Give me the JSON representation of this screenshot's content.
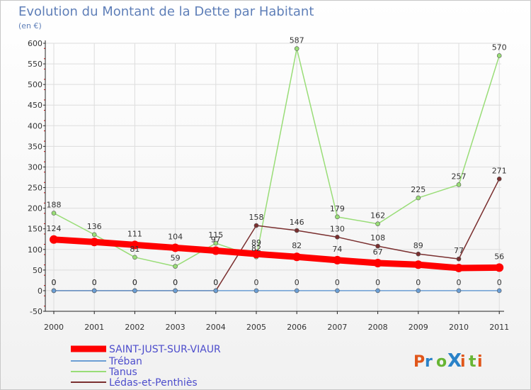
{
  "chart_data": {
    "type": "line",
    "title": "Evolution du Montant de la Dette par Habitant",
    "subtitle": "(en €)",
    "xlabel": "",
    "ylabel": "",
    "ylim": [
      -50,
      600
    ],
    "yticks": [
      -50,
      0,
      50,
      100,
      150,
      200,
      250,
      300,
      350,
      400,
      450,
      500,
      550,
      600
    ],
    "categories": [
      "2000",
      "2001",
      "2002",
      "2003",
      "2004",
      "2005",
      "2006",
      "2007",
      "2008",
      "2009",
      "2010",
      "2011"
    ],
    "grid": true,
    "legend_position": "bottom-left",
    "series": [
      {
        "name": "SAINT-JUST-SUR-VIAUR",
        "color": "#ff0000",
        "values": [
          124,
          118,
          111,
          104,
          97,
          89,
          82,
          74,
          67,
          63,
          55,
          56
        ],
        "labels": [
          "124",
          "",
          "111",
          "104",
          "97",
          "89",
          "82",
          "74",
          "67",
          "",
          "",
          "56"
        ]
      },
      {
        "name": "Tréban",
        "color": "#6b9ed4",
        "values": [
          0,
          0,
          0,
          0,
          0,
          0,
          0,
          0,
          0,
          0,
          0,
          0
        ],
        "labels": [
          "0",
          "0",
          "0",
          "0",
          "0",
          "0",
          "0",
          "0",
          "0",
          "0",
          "0",
          "0"
        ]
      },
      {
        "name": "Tanus",
        "color": "#99dd77",
        "values": [
          188,
          136,
          81,
          59,
          115,
          82,
          587,
          179,
          162,
          225,
          257,
          570
        ],
        "labels": [
          "188",
          "136",
          "81",
          "59",
          "115",
          "82",
          "587",
          "179",
          "162",
          "225",
          "257",
          "570"
        ]
      },
      {
        "name": "Lédas-et-Penthiès",
        "color": "#7a2f2f",
        "values": [
          0,
          0,
          0,
          0,
          0,
          158,
          146,
          130,
          108,
          89,
          77,
          271
        ],
        "labels": [
          "0",
          "0",
          "0",
          "0",
          "0",
          "158",
          "146",
          "130",
          "108",
          "89",
          "77",
          "271"
        ]
      }
    ]
  },
  "logo": {
    "text": "ProXiti"
  }
}
